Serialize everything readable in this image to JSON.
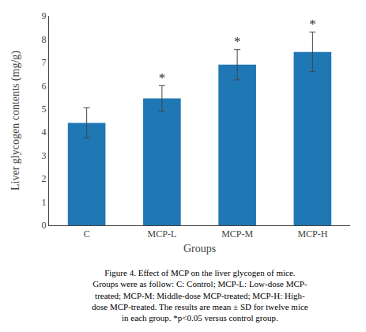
{
  "chart_data": {
    "type": "bar",
    "categories": [
      "C",
      "MCP-L",
      "MCP-M",
      "MCP-H"
    ],
    "values": [
      4.4,
      5.45,
      6.9,
      7.45
    ],
    "errors": [
      0.65,
      0.55,
      0.65,
      0.85
    ],
    "significance": [
      null,
      "*",
      "*",
      "*"
    ],
    "xlabel": "Groups",
    "ylabel": "Liver glycogen contents (mg/g)",
    "ylim": [
      0,
      9
    ],
    "yticks": [
      0,
      1,
      2,
      3,
      4,
      5,
      6,
      7,
      8,
      9
    ],
    "grid": false,
    "annotations": [
      "Figure 4. Effect of MCP on the liver glycogen of mice.",
      "Groups were as follow: C: Control; MCP-L: Low-dose MCP-",
      "treated; MCP-M: Middle-dose MCP-treated; MCP-H: High-",
      "dose MCP-treated. The results are mean ± SD for twelve mice",
      "in each group. *p<0.05 versus control group."
    ]
  }
}
